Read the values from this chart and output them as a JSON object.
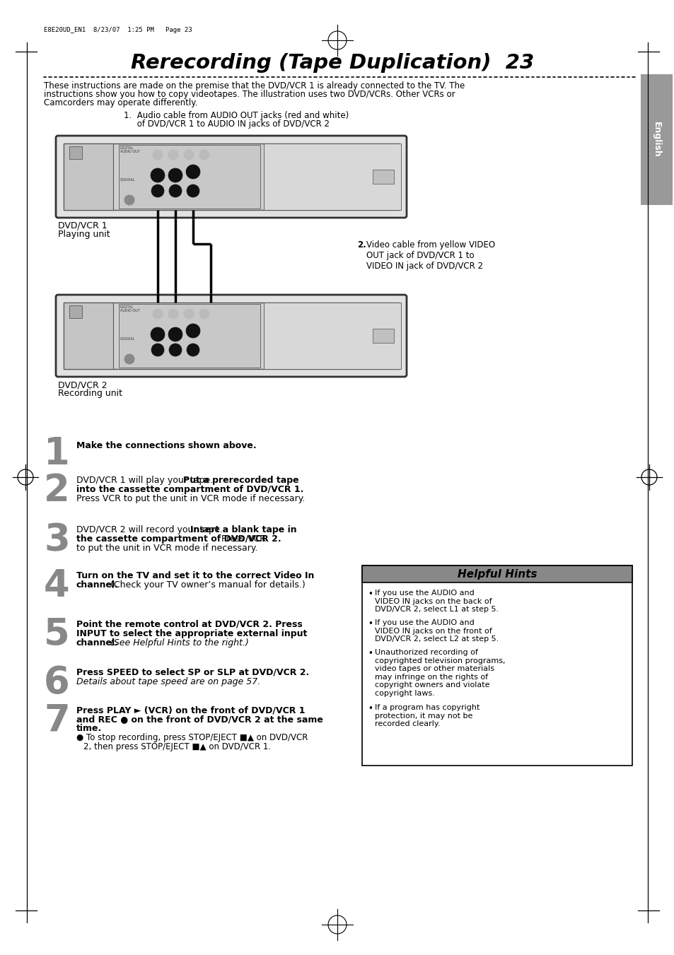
{
  "title": "Rerecording (Tape Duplication)  23",
  "header_text": "E8E20UD_EN1  8/23/07  1:25 PM   Page 23",
  "intro_line1": "These instructions are made on the premise that the DVD/VCR 1 is already connected to the TV. The",
  "intro_line2": "instructions show you how to copy videotapes. The illustration uses two DVD/VCRs. Other VCRs or",
  "intro_line3": "Camcorders may operate differently.",
  "label1_a": "1.  Audio cable from AUDIO OUT jacks (red and white)",
  "label1_b": "     of DVD/VCR 1 to AUDIO IN jacks of DVD/VCR 2",
  "label2_num": "2.",
  "label2_text": "Video cable from yellow VIDEO\nOUT jack of DVD/VCR 1 to\nVIDEO IN jack of DVD/VCR 2",
  "dvdvcr1_line1": "DVD/VCR 1",
  "dvdvcr1_line2": "Playing unit",
  "dvdvcr2_line1": "DVD/VCR 2",
  "dvdvcr2_line2": "Recording unit",
  "step1_bold": "Make the connections shown above.",
  "step2_reg": "DVD/VCR 1 will play your tape. ",
  "step2_bold": "Put a prerecorded tape",
  "step2_bold2": "into the cassette compartment of DVD/VCR 1.",
  "step2_reg2": "Press VCR to put the unit in VCR mode if necessary.",
  "step3_reg": "DVD/VCR 2 will record your tape. ",
  "step3_bold": "Insert a blank tape in",
  "step3_bold2": "the cassette compartment of DVD/VCR 2.",
  "step3_reg2": " Press VCR",
  "step3_reg3": "to put the unit in VCR mode if necessary.",
  "step4_bold": "Turn on the TV and set it to the correct Video In",
  "step4_bold2": "channel.",
  "step4_reg": " (Check your TV owner’s manual for details.)",
  "step5_bold": "Point the remote control at DVD/VCR 2. Press",
  "step5_bold2": "INPUT to select the appropriate external input",
  "step5_bold3": "channel.",
  "step5_italic": " (See Helpful Hints to the right.)",
  "step6_bold": "Press SPEED to select SP or SLP at DVD/VCR 2.",
  "step6_italic": "Details about tape speed are on page 57.",
  "step7_bold": "Press PLAY ► (VCR) on the front of DVD/VCR 1",
  "step7_bold2": "and REC ● on the front of DVD/VCR 2 at the same",
  "step7_bold3": "time.",
  "step7_bullet": "● To stop recording, press STOP/EJECT ■▲ on DVD/VCR",
  "step7_bullet2": "2, then press STOP/EJECT ■▲ on DVD/VCR 1.",
  "hints_title": "Helpful Hints",
  "hint1": "If you use the AUDIO and\nVIDEO IN jacks on the back of\nDVD/VCR 2, select L1 at step 5.",
  "hint2": "If you use the AUDIO and\nVIDEO IN jacks on the front of\nDVD/VCR 2, select L2 at step 5.",
  "hint3": "Unauthorized recording of\ncopyrighted television programs,\nvideo tapes or other materials\nmay infringe on the rights of\ncopyright owners and violate\ncopyright laws.",
  "hint4": "If a program has copyright\nprotection, it may not be\nrecorded clearly.",
  "english_tab": "English",
  "bg_color": "#ffffff",
  "tab_color": "#999999",
  "hint_title_color": "#888888"
}
